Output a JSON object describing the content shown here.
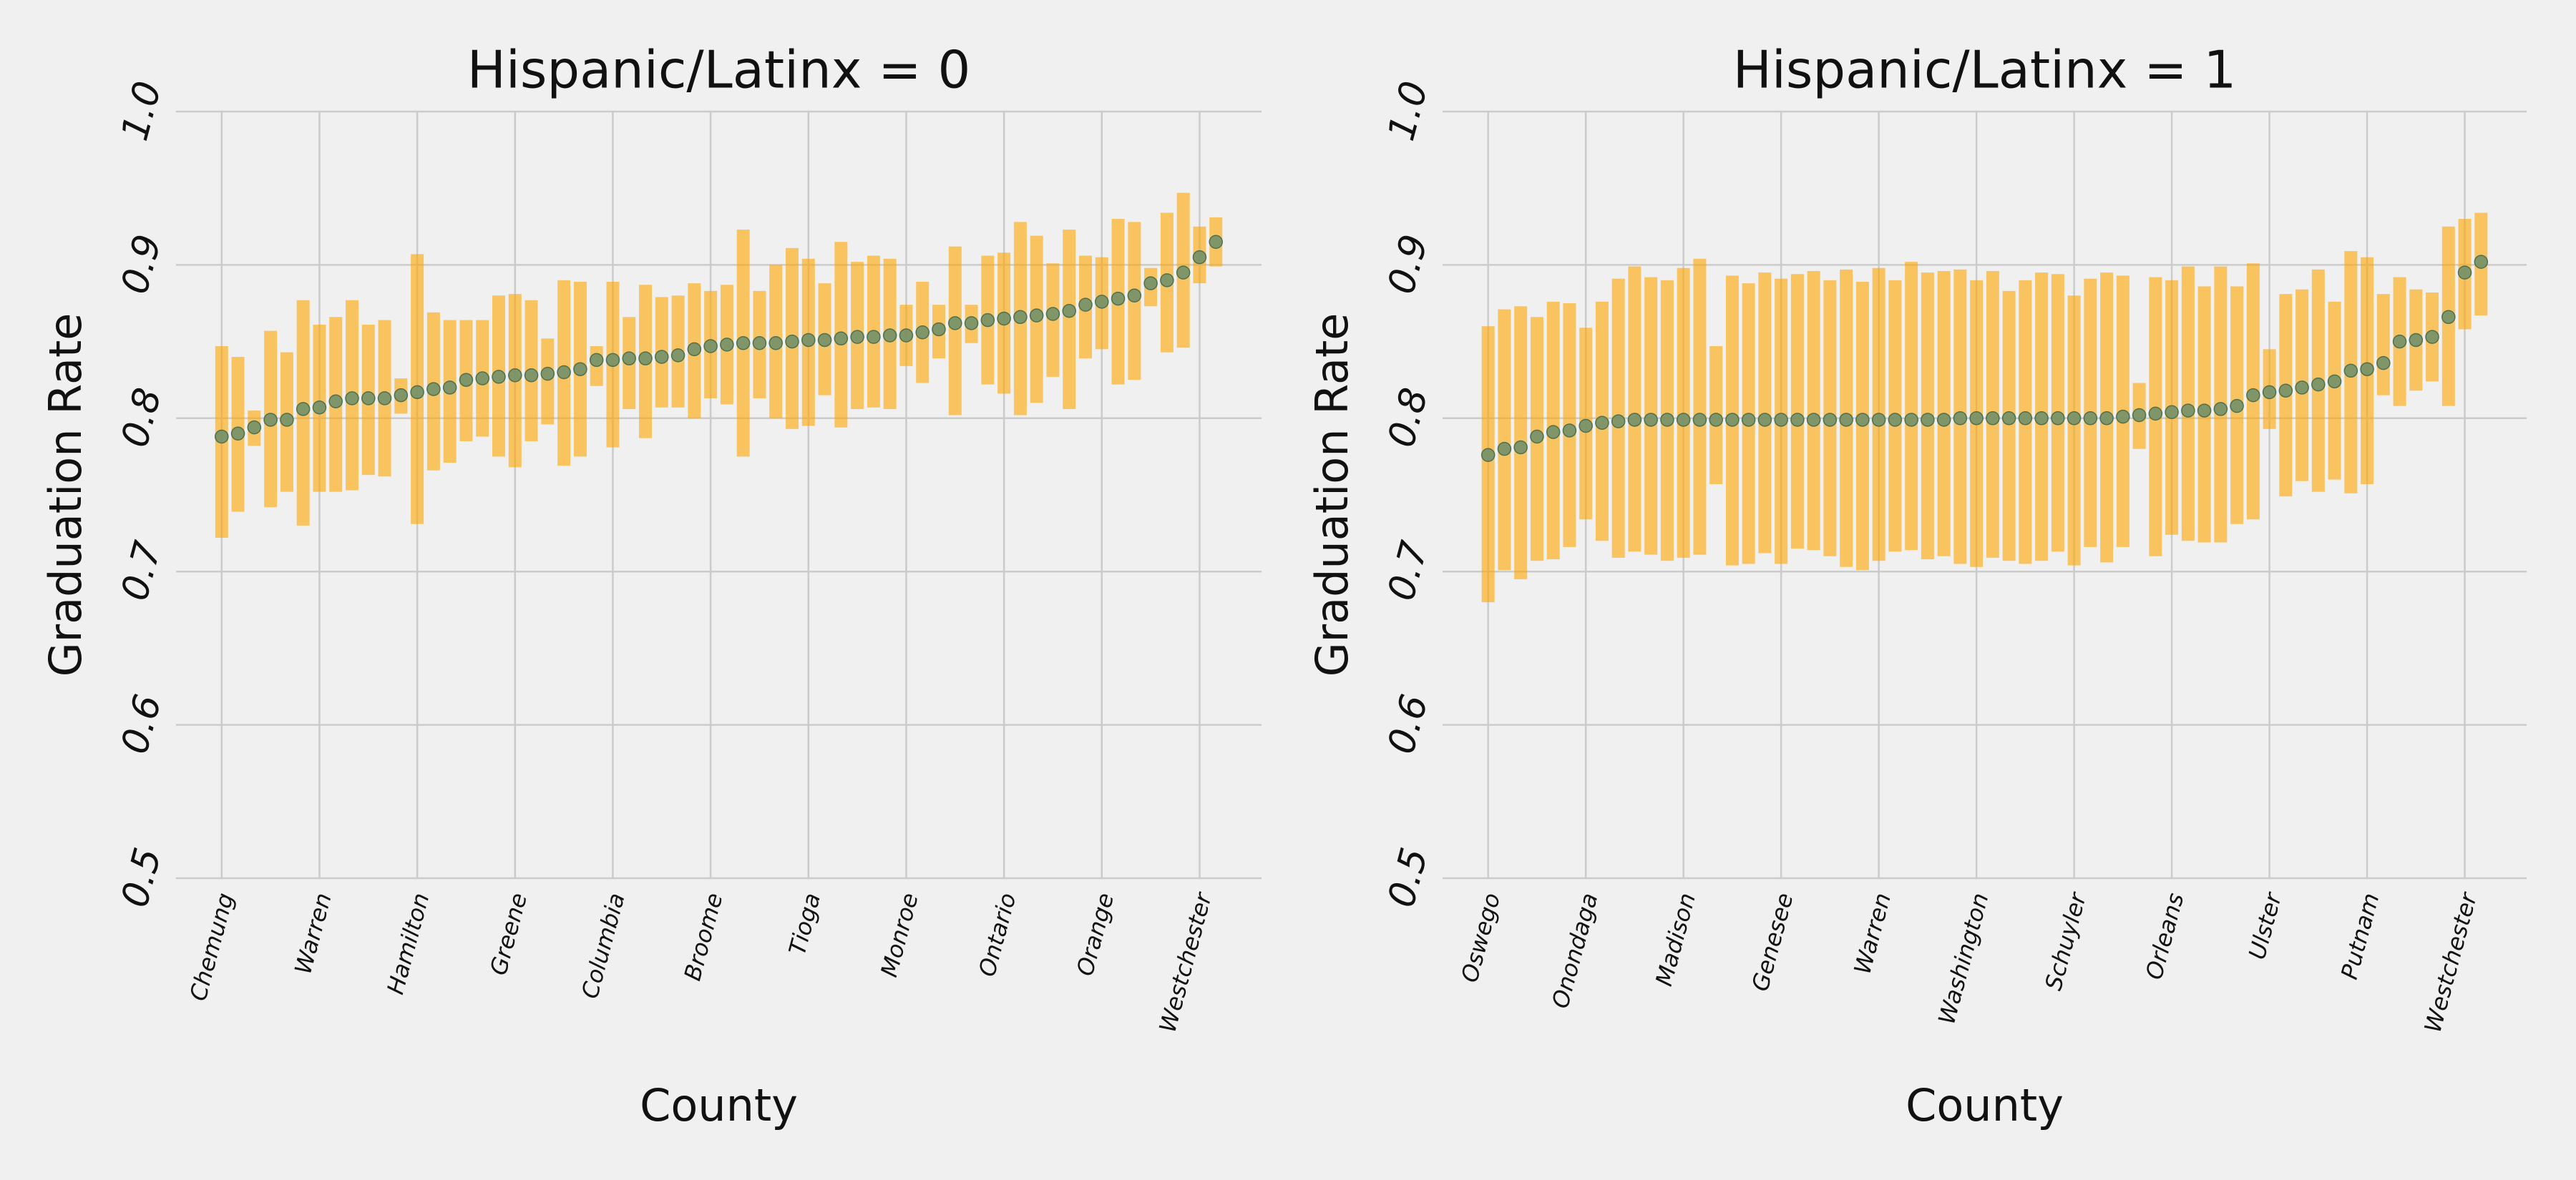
{
  "chart_data": [
    {
      "type": "errorbar",
      "title": "Hispanic/Latinx = 0",
      "xlabel": "County",
      "ylabel": "Graduation Rate",
      "categories": [
        "Chemung",
        null,
        null,
        null,
        null,
        null,
        "Warren",
        null,
        null,
        null,
        null,
        null,
        "Hamilton",
        null,
        null,
        null,
        null,
        null,
        "Greene",
        null,
        null,
        null,
        null,
        null,
        "Columbia",
        null,
        null,
        null,
        null,
        null,
        "Broome",
        null,
        null,
        null,
        null,
        null,
        "Tioga",
        null,
        null,
        null,
        null,
        null,
        "Monroe",
        null,
        null,
        null,
        null,
        null,
        "Ontario",
        null,
        null,
        null,
        null,
        null,
        "Orange",
        null,
        null,
        null,
        null,
        null,
        "Westchester",
        null
      ],
      "values": [
        0.788,
        0.79,
        0.794,
        0.799,
        0.799,
        0.806,
        0.807,
        0.811,
        0.813,
        0.813,
        0.813,
        0.815,
        0.817,
        0.819,
        0.82,
        0.825,
        0.826,
        0.827,
        0.828,
        0.828,
        0.829,
        0.83,
        0.832,
        0.838,
        0.838,
        0.839,
        0.839,
        0.84,
        0.841,
        0.845,
        0.847,
        0.848,
        0.849,
        0.849,
        0.849,
        0.85,
        0.851,
        0.851,
        0.852,
        0.853,
        0.853,
        0.854,
        0.854,
        0.856,
        0.858,
        0.862,
        0.862,
        0.864,
        0.865,
        0.866,
        0.867,
        0.868,
        0.87,
        0.874,
        0.876,
        0.878,
        0.88,
        0.888,
        0.89,
        0.895,
        0.905,
        0.915
      ],
      "upper": [
        0.847,
        0.84,
        0.805,
        0.857,
        0.843,
        0.877,
        0.861,
        0.866,
        0.877,
        0.861,
        0.864,
        0.826,
        0.907,
        0.869,
        0.864,
        0.864,
        0.864,
        0.88,
        0.881,
        0.877,
        0.852,
        0.89,
        0.889,
        0.847,
        0.889,
        0.866,
        0.887,
        0.879,
        0.88,
        0.888,
        0.883,
        0.887,
        0.923,
        0.883,
        0.9,
        0.911,
        0.904,
        0.888,
        0.915,
        0.902,
        0.906,
        0.904,
        0.874,
        0.889,
        0.874,
        0.912,
        0.874,
        0.906,
        0.908,
        0.928,
        0.919,
        0.901,
        0.923,
        0.906,
        0.905,
        0.93,
        0.928,
        0.898,
        0.934,
        0.947,
        0.925,
        0.931
      ],
      "lower": [
        0.722,
        0.739,
        0.782,
        0.742,
        0.752,
        0.73,
        0.752,
        0.752,
        0.753,
        0.763,
        0.762,
        0.803,
        0.731,
        0.766,
        0.771,
        0.785,
        0.788,
        0.775,
        0.768,
        0.785,
        0.796,
        0.769,
        0.775,
        0.821,
        0.781,
        0.806,
        0.787,
        0.807,
        0.807,
        0.8,
        0.813,
        0.809,
        0.775,
        0.813,
        0.8,
        0.793,
        0.795,
        0.815,
        0.794,
        0.806,
        0.807,
        0.806,
        0.834,
        0.823,
        0.839,
        0.802,
        0.849,
        0.822,
        0.816,
        0.802,
        0.81,
        0.827,
        0.806,
        0.839,
        0.845,
        0.822,
        0.825,
        0.873,
        0.843,
        0.846,
        0.888,
        0.899
      ],
      "ylim": [
        0.5,
        1.0
      ],
      "yticks": [
        0.5,
        0.6,
        0.7,
        0.8,
        0.9,
        {
          "value": 1.0,
          "label": "1.0"
        }
      ],
      "grid": true,
      "bar_color": "#ffa500",
      "marker_color": "#6b8e6b"
    },
    {
      "type": "errorbar",
      "title": "Hispanic/Latinx = 1",
      "xlabel": "County",
      "ylabel": "Graduation Rate",
      "categories": [
        "Oswego",
        null,
        null,
        null,
        null,
        null,
        "Onondaga",
        null,
        null,
        null,
        null,
        null,
        "Madison",
        null,
        null,
        null,
        null,
        null,
        "Genesee",
        null,
        null,
        null,
        null,
        null,
        "Warren",
        null,
        null,
        null,
        null,
        null,
        "Washington",
        null,
        null,
        null,
        null,
        null,
        "Schuyler",
        null,
        null,
        null,
        null,
        null,
        "Orleans",
        null,
        null,
        null,
        null,
        null,
        "Ulster",
        null,
        null,
        null,
        null,
        null,
        "Putnam",
        null,
        null,
        null,
        null,
        null,
        "Westchester",
        null
      ],
      "values": [
        0.776,
        0.78,
        0.781,
        0.788,
        0.791,
        0.792,
        0.795,
        0.797,
        0.798,
        0.799,
        0.799,
        0.799,
        0.799,
        0.799,
        0.799,
        0.799,
        0.799,
        0.799,
        0.799,
        0.799,
        0.799,
        0.799,
        0.799,
        0.799,
        0.799,
        0.799,
        0.799,
        0.799,
        0.799,
        0.8,
        0.8,
        0.8,
        0.8,
        0.8,
        0.8,
        0.8,
        0.8,
        0.8,
        0.8,
        0.801,
        0.802,
        0.803,
        0.804,
        0.805,
        0.805,
        0.806,
        0.808,
        0.815,
        0.817,
        0.818,
        0.82,
        0.822,
        0.824,
        0.831,
        0.832,
        0.836,
        0.85,
        0.851,
        0.853,
        0.866,
        0.895,
        0.902
      ],
      "upper": [
        0.86,
        0.871,
        0.873,
        0.866,
        0.876,
        0.875,
        0.859,
        0.876,
        0.891,
        0.899,
        0.892,
        0.89,
        0.898,
        0.904,
        0.847,
        0.893,
        0.888,
        0.895,
        0.891,
        0.894,
        0.896,
        0.89,
        0.897,
        0.889,
        0.898,
        0.89,
        0.902,
        0.895,
        0.896,
        0.897,
        0.89,
        0.896,
        0.883,
        0.89,
        0.895,
        0.894,
        0.88,
        0.891,
        0.895,
        0.893,
        0.823,
        0.892,
        0.89,
        0.899,
        0.886,
        0.899,
        0.886,
        0.901,
        0.845,
        0.881,
        0.884,
        0.897,
        0.876,
        0.909,
        0.905,
        0.881,
        0.892,
        0.884,
        0.882,
        0.925,
        0.93,
        0.934
      ],
      "lower": [
        0.68,
        0.701,
        0.695,
        0.707,
        0.708,
        0.716,
        0.734,
        0.72,
        0.709,
        0.713,
        0.711,
        0.707,
        0.709,
        0.711,
        0.757,
        0.704,
        0.705,
        0.712,
        0.705,
        0.715,
        0.714,
        0.71,
        0.703,
        0.701,
        0.707,
        0.713,
        0.714,
        0.708,
        0.71,
        0.705,
        0.703,
        0.709,
        0.707,
        0.705,
        0.707,
        0.713,
        0.704,
        0.716,
        0.706,
        0.716,
        0.78,
        0.71,
        0.724,
        0.72,
        0.719,
        0.719,
        0.731,
        0.734,
        0.793,
        0.749,
        0.759,
        0.752,
        0.76,
        0.751,
        0.757,
        0.815,
        0.808,
        0.818,
        0.824,
        0.808,
        0.858,
        0.867
      ],
      "ylim": [
        0.5,
        1.0
      ],
      "yticks": [
        0.5,
        0.6,
        0.7,
        0.8,
        0.9,
        {
          "value": 1.0,
          "label": "1.0"
        }
      ],
      "grid": true,
      "bar_color": "#ffa500",
      "marker_color": "#6b8e6b"
    }
  ]
}
